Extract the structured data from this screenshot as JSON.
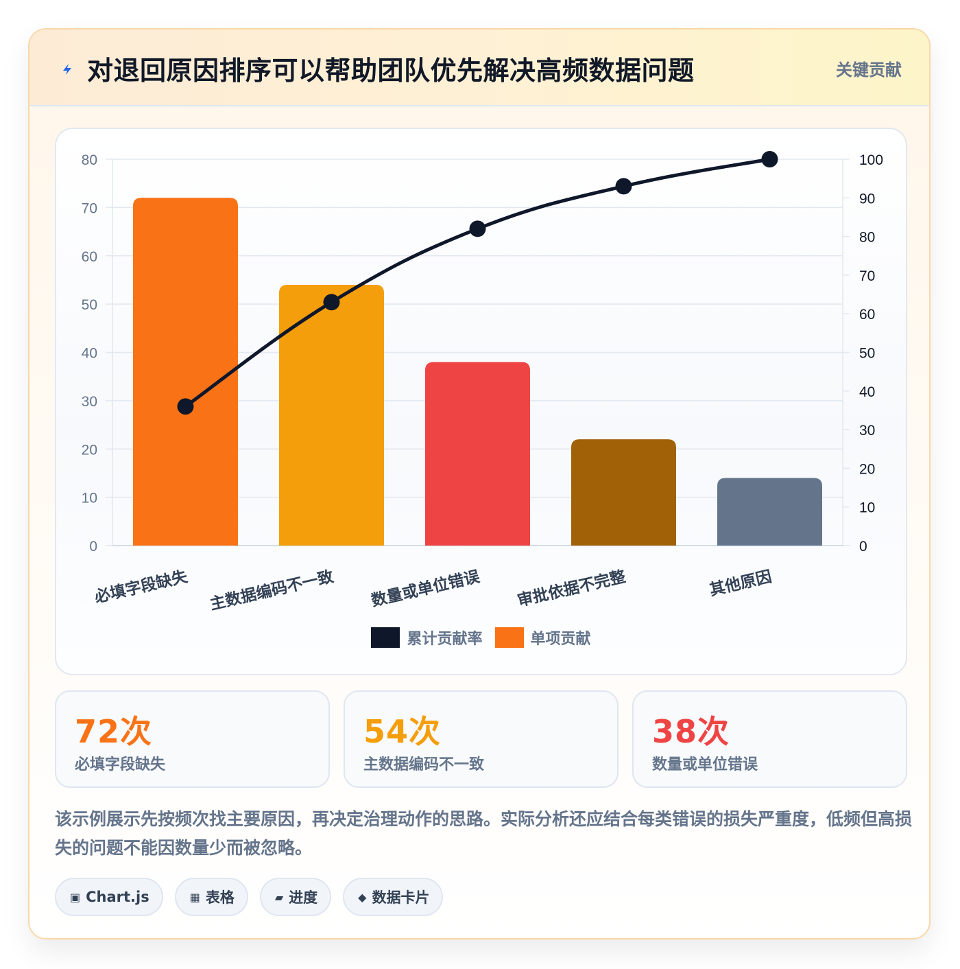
{
  "header": {
    "title": "对退回原因排序可以帮助团队优先解决高频数据问题",
    "tag": "关键贡献",
    "icon": "lightning-icon"
  },
  "chart_data": {
    "type": "bar",
    "categories": [
      "必填字段缺失",
      "主数据编码不一致",
      "数量或单位错误",
      "审批依据不完整",
      "其他原因"
    ],
    "series": [
      {
        "name": "单项贡献",
        "type": "bar",
        "axis": "left",
        "values": [
          72,
          54,
          38,
          22,
          14
        ],
        "colors": [
          "#f97316",
          "#f59e0b",
          "#ef4444",
          "#a16207",
          "#64748b"
        ]
      },
      {
        "name": "累计贡献率",
        "type": "line",
        "axis": "right",
        "values": [
          36,
          63,
          82,
          93,
          100
        ],
        "color": "#0f172a"
      }
    ],
    "y_left": {
      "min": 0,
      "max": 80,
      "ticks": [
        "0",
        "10",
        "20",
        "30",
        "40",
        "50",
        "60",
        "70",
        "80"
      ]
    },
    "y_right": {
      "min": 0,
      "max": 100,
      "ticks": [
        "0",
        "10",
        "20",
        "30",
        "40",
        "50",
        "60",
        "70",
        "80",
        "90",
        "100"
      ]
    },
    "grid": true,
    "legend_position": "bottom",
    "legend": [
      {
        "label": "累计贡献率",
        "color": "#0f172a"
      },
      {
        "label": "单项贡献",
        "color": "#f97316"
      }
    ]
  },
  "stats": [
    {
      "value": "72次",
      "label": "必填字段缺失",
      "color": "#f97316"
    },
    {
      "value": "54次",
      "label": "主数据编码不一致",
      "color": "#f59e0b"
    },
    {
      "value": "38次",
      "label": "数量或单位错误",
      "color": "#ef4444"
    }
  ],
  "note": "该示例展示先按频次找主要原因，再决定治理动作的思路。实际分析还应结合每类错误的损失严重度，低频但高损失的问题不能因数量少而被忽略。",
  "chips": [
    {
      "icon": "▣",
      "icon_name": "chart-icon",
      "label": "Chart.js"
    },
    {
      "icon": "▦",
      "icon_name": "table-icon",
      "label": "表格"
    },
    {
      "icon": "▰",
      "icon_name": "progress-icon",
      "label": "进度"
    },
    {
      "icon": "◆",
      "icon_name": "card-icon",
      "label": "数据卡片"
    }
  ]
}
